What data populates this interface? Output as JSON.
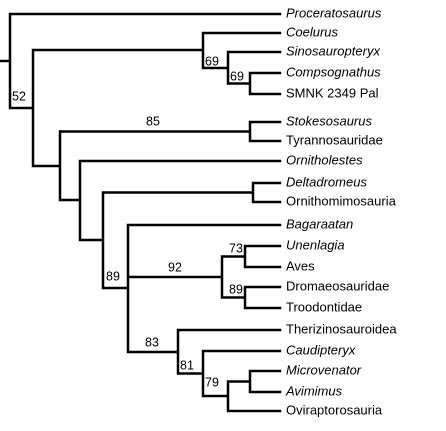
{
  "taxa": [
    "Proceratosaurus",
    "Coelurus",
    "Sinosauropteryx",
    "Compsognathus",
    "SMNK 2349 Pal",
    "Stokesosaurus",
    "Tyrannosauridae",
    "Ornitholestes",
    "Deltadromeus",
    "Ornithomimosauria",
    "Bagaraatan",
    "Unenlagia",
    "Aves",
    "Dromaeosauridae",
    "Troodontidae",
    "Therizinosauroidea",
    "Caudipteryx",
    "Microvenator",
    "Avimimus",
    "Oviraptorosauria"
  ],
  "support": [
    52,
    69,
    69,
    85,
    89,
    92,
    73,
    89,
    83,
    81,
    79
  ]
}
